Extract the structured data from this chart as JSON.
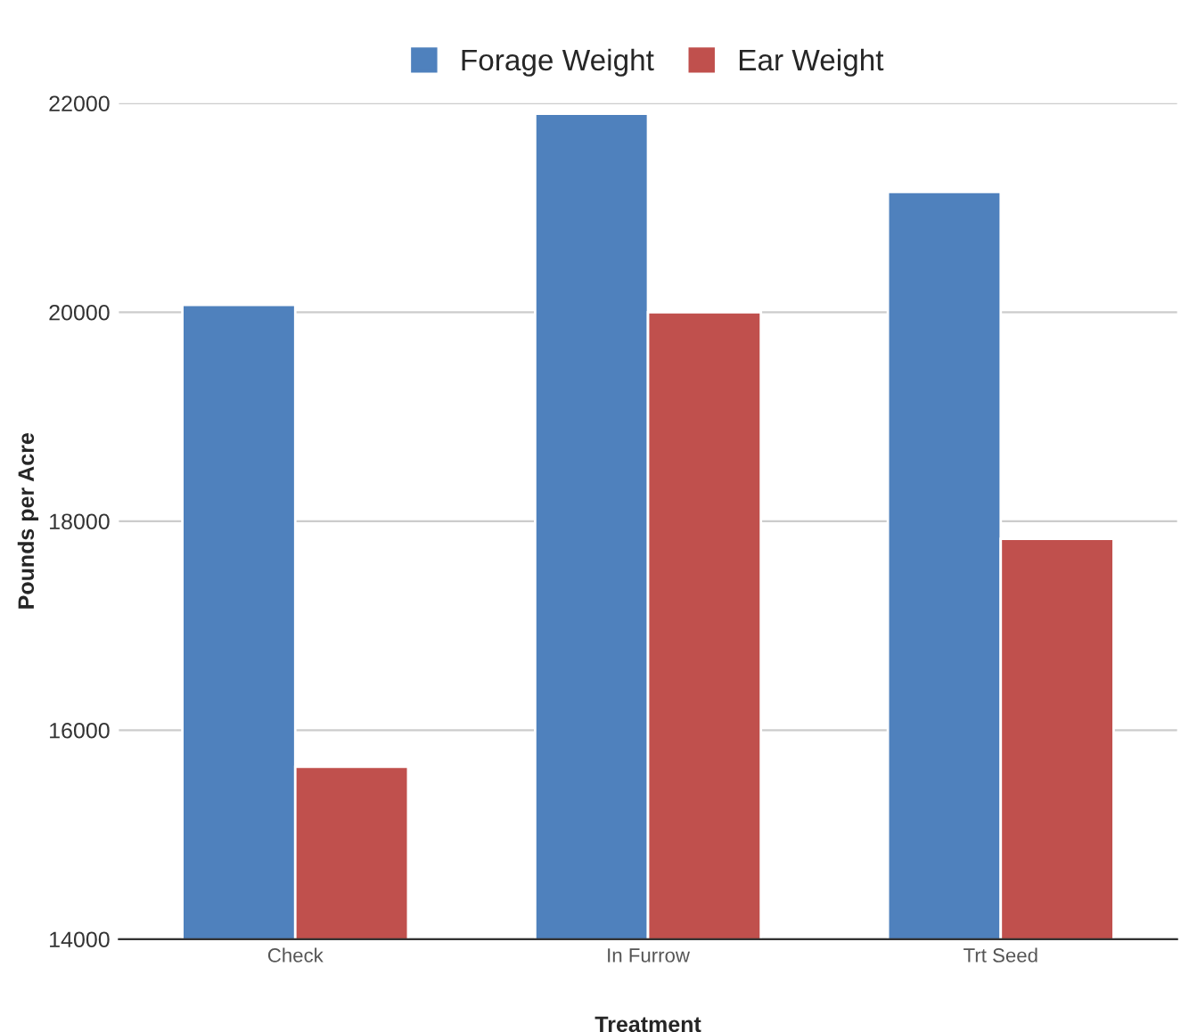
{
  "chart_data": {
    "type": "bar",
    "xlabel": "Treatment",
    "ylabel": "Pounds per Acre",
    "categories": [
      "Check",
      "In Furrow",
      "Trt Seed"
    ],
    "series": [
      {
        "name": "Forage Weight",
        "color": "#4f81bd",
        "values": [
          20070,
          21900,
          21150
        ]
      },
      {
        "name": "Ear Weight",
        "color": "#c0504d",
        "values": [
          15650,
          20000,
          17830
        ]
      }
    ],
    "ylim": [
      14000,
      22000
    ],
    "yticks": [
      14000,
      16000,
      18000,
      20000,
      22000
    ],
    "grid": "y",
    "legend": "top"
  }
}
